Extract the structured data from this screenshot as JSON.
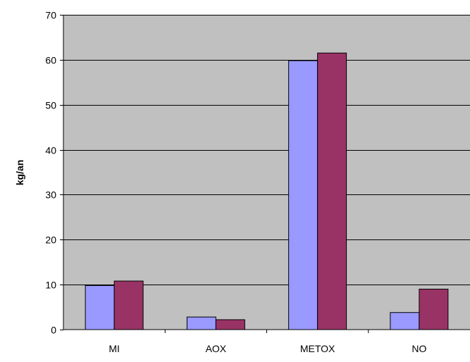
{
  "chart_data": {
    "type": "bar",
    "title": "",
    "xlabel": "",
    "ylabel": "kg/an",
    "categories": [
      "MI",
      "AOX",
      "METOX",
      "NO"
    ],
    "series": [
      {
        "values": [
          9.8,
          2.8,
          59.8,
          3.8
        ]
      },
      {
        "values": [
          10.8,
          2.2,
          61.5,
          9.0
        ]
      }
    ],
    "ylim": [
      0,
      70
    ],
    "yticks": [
      0,
      10,
      20,
      30,
      40,
      50,
      60,
      70
    ],
    "grid": true,
    "legend": "none",
    "colors": {
      "plot_background": "#c0c0c0",
      "series": [
        "#9999ff",
        "#993366"
      ],
      "gridline": "#000000"
    }
  }
}
